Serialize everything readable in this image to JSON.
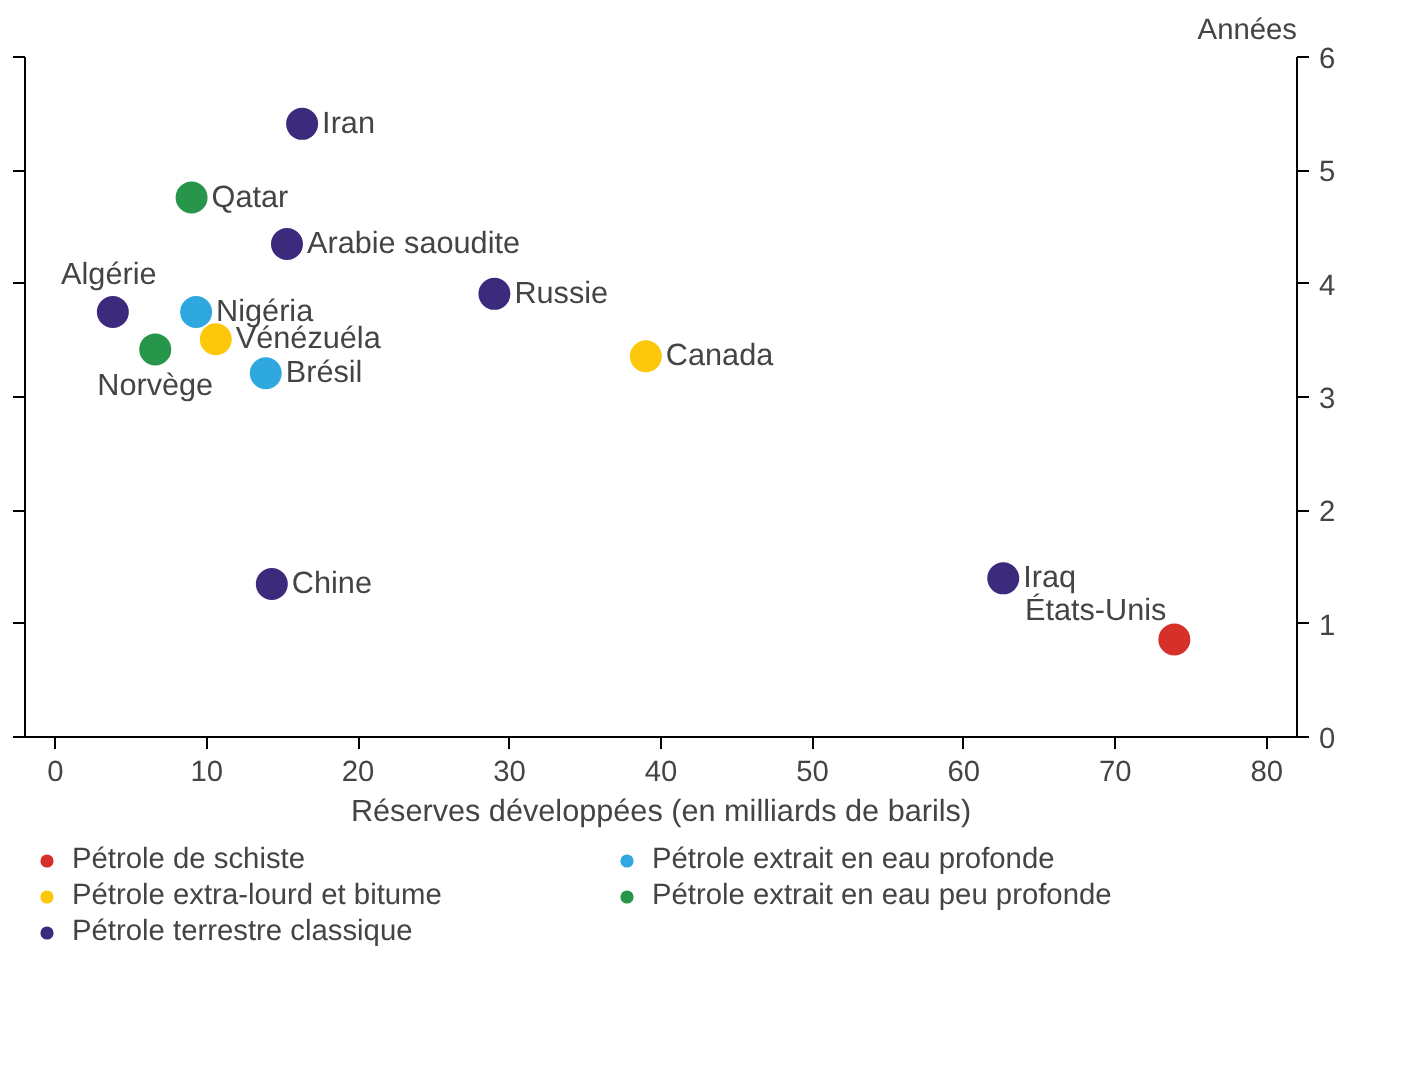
{
  "chart_data": {
    "type": "scatter",
    "xlabel": "Réserves développées (en milliards de barils)",
    "ylabel": "Années",
    "xlim": [
      -2,
      82
    ],
    "xticks": [
      0,
      10,
      20,
      30,
      40,
      50,
      60,
      70,
      80
    ],
    "ylim": [
      0,
      6
    ],
    "yticks": [
      0,
      1,
      2,
      3,
      4,
      5,
      6
    ],
    "grid": false,
    "legend": "bottom",
    "marker": "circle",
    "series": [
      {
        "name": "Pétrole de schiste",
        "color": "#d7302a",
        "x": [
          73.9
        ],
        "values": [
          0.86
        ]
      },
      {
        "name": "Pétrole extra-lourd et bitume",
        "color": "#fdc70c",
        "x": [
          10.6,
          39.0
        ],
        "values": [
          3.51,
          3.36
        ]
      },
      {
        "name": "Pétrole terrestre classique",
        "color": "#3c2a7c",
        "x": [
          16.3,
          15.3,
          29.0,
          3.8,
          14.3,
          62.6
        ],
        "values": [
          5.41,
          4.35,
          3.91,
          3.75,
          1.35,
          1.4
        ]
      },
      {
        "name": "Pétrole extrait en eau profonde",
        "color": "#2fa8e0",
        "x": [
          9.3,
          13.9
        ],
        "values": [
          3.75,
          3.21
        ]
      },
      {
        "name": "Pétrole extrait en eau peu profonde",
        "color": "#27954a",
        "x": [
          9.0,
          6.6
        ],
        "values": [
          4.76,
          3.42
        ]
      }
    ],
    "annotations": [
      {
        "text": "Iran",
        "x": 16.3,
        "y": 5.41
      },
      {
        "text": "Qatar",
        "x": 9.0,
        "y": 4.76
      },
      {
        "text": "Arabie saoudite",
        "x": 15.3,
        "y": 4.35
      },
      {
        "text": "Russie",
        "x": 29.0,
        "y": 3.91
      },
      {
        "text": "Algérie",
        "x": 3.8,
        "y": 3.75
      },
      {
        "text": "Nigéria",
        "x": 9.3,
        "y": 3.75
      },
      {
        "text": "Vénézuéla",
        "x": 10.6,
        "y": 3.51
      },
      {
        "text": "Norvège",
        "x": 6.6,
        "y": 3.42
      },
      {
        "text": "Canada",
        "x": 39.0,
        "y": 3.36
      },
      {
        "text": "Brésil",
        "x": 13.9,
        "y": 3.21
      },
      {
        "text": "Chine",
        "x": 14.3,
        "y": 1.35
      },
      {
        "text": "Iraq",
        "x": 62.6,
        "y": 1.4
      },
      {
        "text": "États-Unis",
        "x": 73.9,
        "y": 0.86
      }
    ]
  }
}
